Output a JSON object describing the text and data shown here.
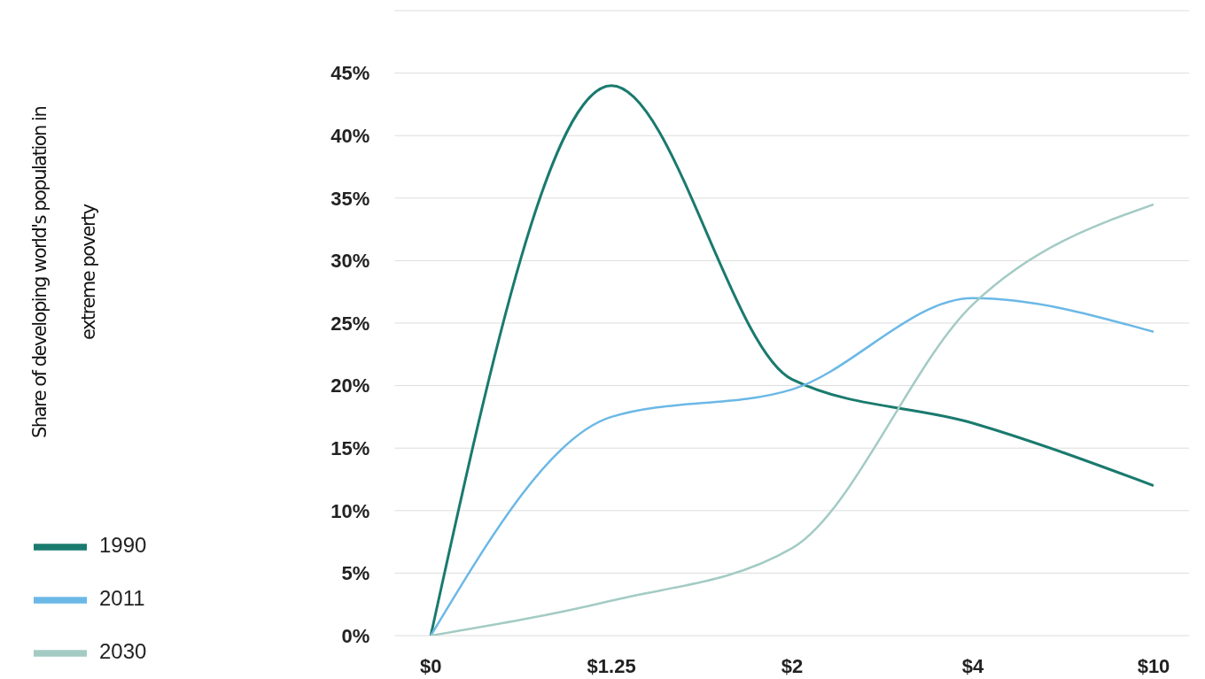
{
  "chart_data": {
    "type": "line",
    "ylabel": "Share of developing world's population in extreme poverty",
    "categories": [
      "$0",
      "$1.25",
      "$2",
      "$4",
      "$10"
    ],
    "series": [
      {
        "name": "1990",
        "color": "#1a7a6e",
        "values": [
          0,
          44,
          20.5,
          17,
          12
        ]
      },
      {
        "name": "2011",
        "color": "#6bb8e6",
        "values": [
          0,
          17.5,
          19.7,
          27,
          24.3
        ]
      },
      {
        "name": "2030",
        "color": "#a3cbc4",
        "values": [
          0,
          2.8,
          7,
          26.5,
          34.5
        ]
      }
    ],
    "ylim": [
      0,
      50
    ],
    "yticks": [
      {
        "value": 0,
        "label": "0%"
      },
      {
        "value": 5,
        "label": "5%"
      },
      {
        "value": 10,
        "label": "10%"
      },
      {
        "value": 15,
        "label": "15%"
      },
      {
        "value": 20,
        "label": "20%"
      },
      {
        "value": 25,
        "label": "25%"
      },
      {
        "value": 30,
        "label": "30%"
      },
      {
        "value": 35,
        "label": "35%"
      },
      {
        "value": 40,
        "label": "40%"
      },
      {
        "value": 45,
        "label": "45%"
      },
      {
        "value": 50,
        "label": null
      }
    ],
    "grid": "y",
    "legend": "bottom left"
  }
}
